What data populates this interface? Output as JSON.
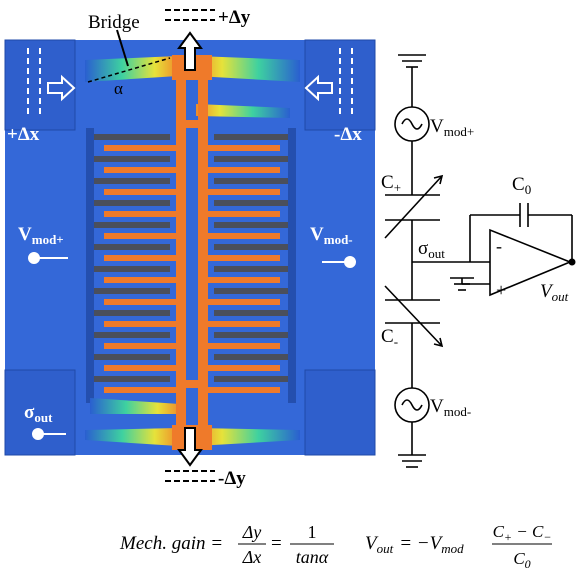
{
  "device": {
    "bridge_label": "Bridge",
    "alpha": "α",
    "plus_dy": "+Δy",
    "minus_dy": "-Δy",
    "plus_dx": "+Δx",
    "minus_dx": "-Δx",
    "vmod_plus": {
      "base": "V",
      "sub": "mod+"
    },
    "vmod_minus": {
      "base": "V",
      "sub": "mod-"
    },
    "sigma_out": {
      "base": "σ",
      "sub": "out"
    }
  },
  "circuit": {
    "vmod_plus": {
      "base": "V",
      "sub": "mod+"
    },
    "vmod_minus": {
      "base": "V",
      "sub": "mod-"
    },
    "c_plus": {
      "base": "C",
      "sub": "+"
    },
    "c_minus": {
      "base": "C",
      "sub": "-"
    },
    "c0": {
      "base": "C",
      "sub": "0"
    },
    "sigma_out": {
      "base": "σ",
      "sub": "out"
    },
    "inv_input": "-",
    "noninv_input": "+",
    "vout": {
      "base": "V",
      "sub": "out"
    }
  },
  "equations": {
    "mech_gain": {
      "lhs": "Mech. gain =",
      "num1": "Δy",
      "den1": "Δx",
      "eq": "=",
      "num2": "1",
      "den2": "tanα"
    },
    "vout": {
      "lhs": "V",
      "lhs_sub": "out",
      "eq": "= −V",
      "mod_sub": "mod",
      "num_a": "C",
      "num_a_sub": "+",
      "num_op": " − C",
      "num_b_sub": "−",
      "den": "C",
      "den_sub": "0"
    }
  }
}
